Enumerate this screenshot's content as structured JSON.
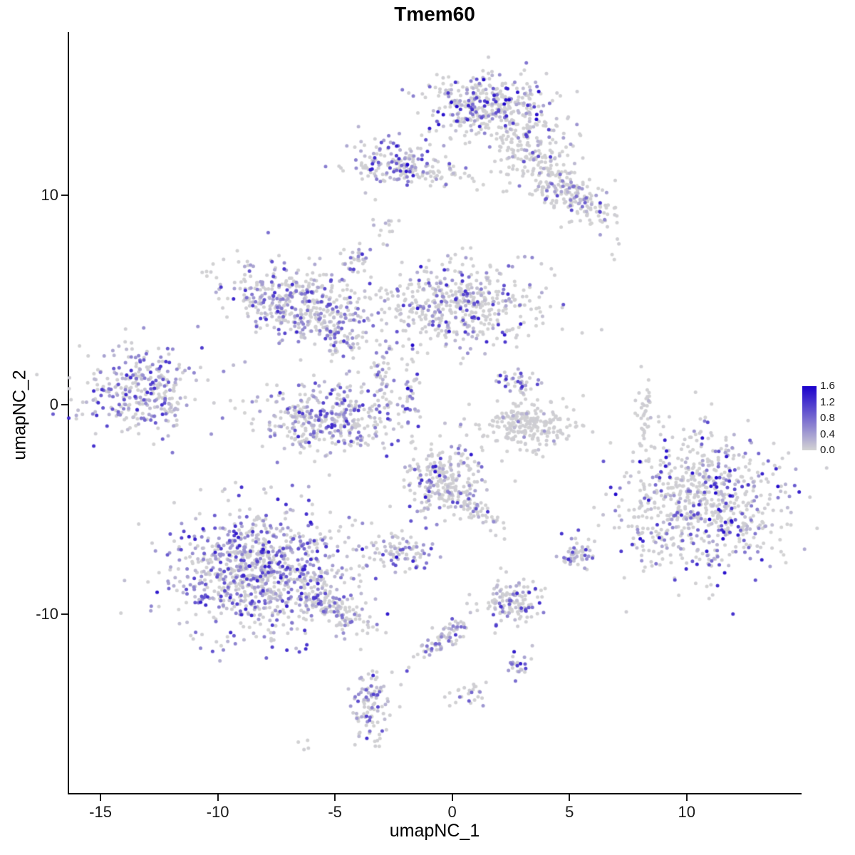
{
  "title": "Tmem60",
  "chart_data": {
    "type": "scatter",
    "title": "Tmem60",
    "xlabel": "umapNC_1",
    "ylabel": "umapNC_2",
    "xlim": [
      -16.4,
      14.9
    ],
    "ylim": [
      -18.6,
      17.8
    ],
    "x_ticks": [
      -15,
      -10,
      -5,
      0,
      5,
      10
    ],
    "y_ticks": [
      -10,
      0,
      10
    ],
    "grid": false,
    "background": "#ffffff",
    "axis_color": "#000000",
    "point_radius_px": 2.5,
    "seed": 20240613,
    "legend": {
      "position": "right",
      "ticks": [
        "1.6",
        "1.2",
        "0.8",
        "0.4",
        "0.0"
      ],
      "max_value": 1.6,
      "low_color": "#D3D3D3",
      "high_color": "#1A00CC"
    },
    "clusters": [
      {
        "cx": 1.6,
        "cy": 14.2,
        "sx": 1.3,
        "sy": 0.85,
        "n": 380,
        "rot": 0,
        "expr_frac": 0.35,
        "vmax": 1.6
      },
      {
        "cx": 3.4,
        "cy": 12.2,
        "sx": 0.8,
        "sy": 0.9,
        "n": 140,
        "rot": 0,
        "expr_frac": 0.18,
        "vmax": 1.0
      },
      {
        "cx": 5.0,
        "cy": 10.2,
        "sx": 1.2,
        "sy": 0.5,
        "n": 200,
        "rot": -40,
        "expr_frac": 0.3,
        "vmax": 1.3
      },
      {
        "cx": -2.5,
        "cy": 11.6,
        "sx": 0.95,
        "sy": 0.55,
        "n": 140,
        "rot": 0,
        "expr_frac": 0.55,
        "vmax": 1.6
      },
      {
        "cx": -0.4,
        "cy": 11.1,
        "sx": 1.4,
        "sy": 0.3,
        "n": 60,
        "rot": 0,
        "expr_frac": 0.12,
        "vmax": 0.8
      },
      {
        "cx": -2.8,
        "cy": 8.4,
        "sx": 0.3,
        "sy": 0.4,
        "n": 12,
        "rot": 0,
        "expr_frac": 0.2,
        "vmax": 0.6
      },
      {
        "cx": -4.2,
        "cy": 6.8,
        "sx": 0.7,
        "sy": 0.25,
        "n": 35,
        "rot": 55,
        "expr_frac": 0.5,
        "vmax": 1.1
      },
      {
        "cx": -6.7,
        "cy": 4.8,
        "sx": 1.5,
        "sy": 0.9,
        "n": 420,
        "rot": -15,
        "expr_frac": 0.45,
        "vmax": 1.3
      },
      {
        "cx": -4.8,
        "cy": 3.4,
        "sx": 0.55,
        "sy": 0.75,
        "n": 70,
        "rot": 0,
        "expr_frac": 0.4,
        "vmax": 1.1
      },
      {
        "cx": 0.3,
        "cy": 4.8,
        "sx": 1.8,
        "sy": 1.0,
        "n": 480,
        "rot": 0,
        "expr_frac": 0.32,
        "vmax": 1.4
      },
      {
        "cx": -13.4,
        "cy": 0.7,
        "sx": 1.25,
        "sy": 1.0,
        "n": 320,
        "rot": 0,
        "expr_frac": 0.55,
        "vmax": 1.3
      },
      {
        "cx": -5.2,
        "cy": -0.6,
        "sx": 1.5,
        "sy": 0.85,
        "n": 380,
        "rot": 0,
        "expr_frac": 0.48,
        "vmax": 1.3
      },
      {
        "cx": -3.1,
        "cy": 1.6,
        "sx": 0.3,
        "sy": 0.9,
        "n": 45,
        "rot": 0,
        "expr_frac": 0.4,
        "vmax": 1.0
      },
      {
        "cx": -1.8,
        "cy": 0.8,
        "sx": 0.2,
        "sy": 0.8,
        "n": 35,
        "rot": 0,
        "expr_frac": 0.5,
        "vmax": 1.6
      },
      {
        "cx": 2.9,
        "cy": 1.1,
        "sx": 0.55,
        "sy": 0.35,
        "n": 35,
        "rot": 0,
        "expr_frac": 0.6,
        "vmax": 1.4
      },
      {
        "cx": 3.2,
        "cy": -0.9,
        "sx": 1.1,
        "sy": 0.65,
        "n": 240,
        "rot": 0,
        "expr_frac": 0.05,
        "vmax": 0.7
      },
      {
        "cx": 8.25,
        "cy": -0.3,
        "sx": 0.2,
        "sy": 0.85,
        "n": 40,
        "rot": 0,
        "expr_frac": 0.08,
        "vmax": 0.5
      },
      {
        "cx": 10.7,
        "cy": -4.8,
        "sx": 1.8,
        "sy": 1.6,
        "n": 750,
        "rot": 20,
        "expr_frac": 0.3,
        "vmax": 1.6
      },
      {
        "cx": -0.3,
        "cy": -3.6,
        "sx": 0.85,
        "sy": 0.85,
        "n": 230,
        "rot": 0,
        "expr_frac": 0.38,
        "vmax": 1.4
      },
      {
        "cx": 0.9,
        "cy": -4.9,
        "sx": 0.8,
        "sy": 0.25,
        "n": 60,
        "rot": -40,
        "expr_frac": 0.25,
        "vmax": 1.0
      },
      {
        "cx": -2.3,
        "cy": -6.9,
        "sx": 0.75,
        "sy": 0.45,
        "n": 90,
        "rot": 0,
        "expr_frac": 0.5,
        "vmax": 1.5
      },
      {
        "cx": -8.2,
        "cy": -8.0,
        "sx": 1.9,
        "sy": 1.5,
        "n": 950,
        "rot": 0,
        "expr_frac": 0.55,
        "vmax": 1.4
      },
      {
        "cx": -4.9,
        "cy": -9.8,
        "sx": 0.9,
        "sy": 0.35,
        "n": 120,
        "rot": -33,
        "expr_frac": 0.3,
        "vmax": 1.2
      },
      {
        "cx": 2.7,
        "cy": -9.5,
        "sx": 0.65,
        "sy": 0.5,
        "n": 130,
        "rot": 0,
        "expr_frac": 0.35,
        "vmax": 1.3
      },
      {
        "cx": 5.25,
        "cy": -7.2,
        "sx": 0.4,
        "sy": 0.4,
        "n": 55,
        "rot": 0,
        "expr_frac": 0.5,
        "vmax": 1.3
      },
      {
        "cx": -0.4,
        "cy": -11.2,
        "sx": 0.9,
        "sy": 0.25,
        "n": 70,
        "rot": 40,
        "expr_frac": 0.45,
        "vmax": 1.2
      },
      {
        "cx": -3.5,
        "cy": -14.3,
        "sx": 0.4,
        "sy": 0.95,
        "n": 95,
        "rot": 0,
        "expr_frac": 0.5,
        "vmax": 1.3
      },
      {
        "cx": 2.9,
        "cy": -12.4,
        "sx": 0.3,
        "sy": 0.35,
        "n": 25,
        "rot": 0,
        "expr_frac": 0.4,
        "vmax": 1.4
      },
      {
        "cx": 0.9,
        "cy": -13.9,
        "sx": 0.45,
        "sy": 0.25,
        "n": 25,
        "rot": 0,
        "expr_frac": 0.3,
        "vmax": 1.0
      },
      {
        "cx": 6.9,
        "cy": 6.9,
        "sx": 0.1,
        "sy": 0.1,
        "n": 2,
        "rot": 0,
        "expr_frac": 0.0,
        "vmax": 0.1
      },
      {
        "cx": -10.6,
        "cy": 6.2,
        "sx": 0.15,
        "sy": 0.15,
        "n": 3,
        "rot": 0,
        "expr_frac": 0.0,
        "vmax": 0.1
      },
      {
        "cx": -6.2,
        "cy": -16.2,
        "sx": 0.2,
        "sy": 0.2,
        "n": 4,
        "rot": 0,
        "expr_frac": 0.2,
        "vmax": 0.5
      },
      {
        "cx": -3.3,
        "cy": -16.0,
        "sx": 0.3,
        "sy": 0.3,
        "n": 6,
        "rot": 0,
        "expr_frac": 0.3,
        "vmax": 0.8
      }
    ]
  }
}
